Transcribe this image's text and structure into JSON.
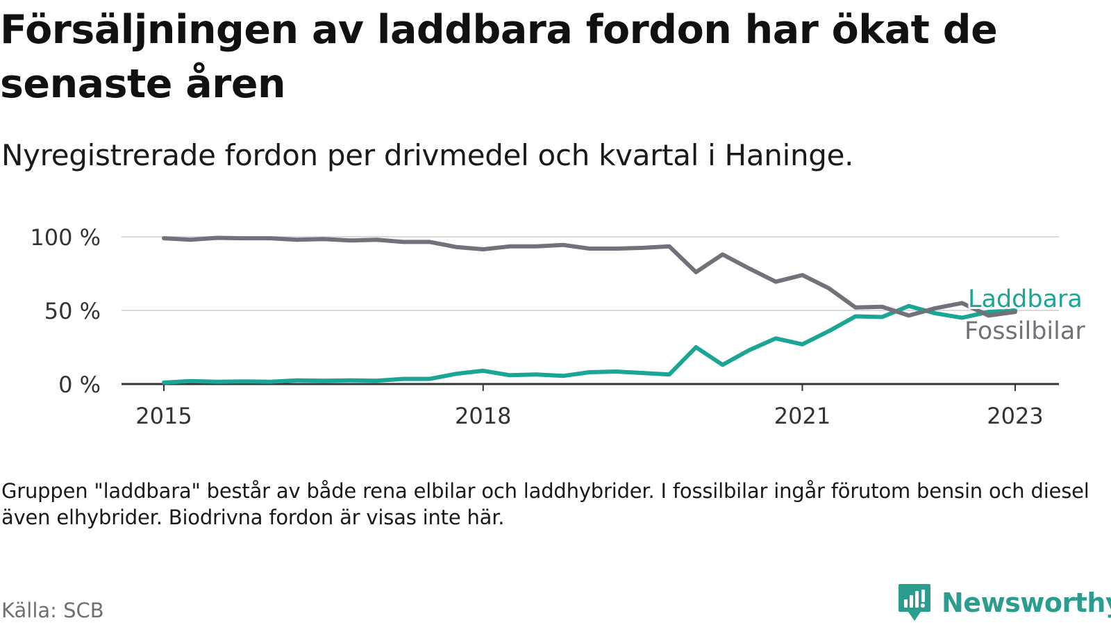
{
  "title": "Försäljningen av laddbara fordon har ökat de senaste åren",
  "subtitle": "Nyregistrerade fordon per drivmedel och kvartal i Haninge.",
  "note": "Gruppen \"laddbara\" består av både rena elbilar och laddhybrider. I fossilbilar ingår förutom bensin och diesel även elhybrider. Biodrivna fordon är visas inte här.",
  "source": "Källa: SCB",
  "brand": "Newsworthy",
  "chart_data": {
    "type": "line",
    "title": "Försäljningen av laddbara fordon har ökat de senaste åren",
    "xlabel": "",
    "ylabel": "",
    "ylim": [
      0,
      100
    ],
    "yticks": [
      0,
      50,
      100
    ],
    "ytick_labels": [
      "0 %",
      "50 %",
      "100 %"
    ],
    "xticks": [
      2015,
      2018,
      2021,
      2023
    ],
    "xtick_labels": [
      "2015",
      "2018",
      "2021",
      "2023"
    ],
    "xlim": [
      2014.6,
      2023.4
    ],
    "grid": true,
    "series": [
      {
        "name": "Laddbara",
        "color": "#1aa595",
        "x": [
          2015.0,
          2015.25,
          2015.5,
          2015.75,
          2016.0,
          2016.25,
          2016.5,
          2016.75,
          2017.0,
          2017.25,
          2017.5,
          2017.75,
          2018.0,
          2018.25,
          2018.5,
          2018.75,
          2019.0,
          2019.25,
          2019.5,
          2019.75,
          2020.0,
          2020.25,
          2020.5,
          2020.75,
          2021.0,
          2021.25,
          2021.5,
          2021.75,
          2022.0,
          2022.25,
          2022.5,
          2022.75,
          2023.0
        ],
        "values": [
          1,
          2,
          1.5,
          1.8,
          1.5,
          2.5,
          2.2,
          2.5,
          2.2,
          3.5,
          3.5,
          7,
          9,
          6,
          6.5,
          5.5,
          8,
          8.5,
          7.5,
          6.5,
          25,
          13,
          23,
          31,
          27,
          36,
          46,
          45.5,
          53,
          48,
          45,
          49,
          50
        ]
      },
      {
        "name": "Fossilbilar",
        "color": "#727079",
        "x": [
          2015.0,
          2015.25,
          2015.5,
          2015.75,
          2016.0,
          2016.25,
          2016.5,
          2016.75,
          2017.0,
          2017.25,
          2017.5,
          2017.75,
          2018.0,
          2018.25,
          2018.5,
          2018.75,
          2019.0,
          2019.25,
          2019.5,
          2019.75,
          2020.0,
          2020.25,
          2020.5,
          2020.75,
          2021.0,
          2021.25,
          2021.5,
          2021.75,
          2022.0,
          2022.25,
          2022.5,
          2022.75,
          2023.0
        ],
        "values": [
          99,
          98,
          99.3,
          99,
          99,
          98,
          98.5,
          97.5,
          98,
          96.5,
          96.5,
          93,
          91.5,
          93.5,
          93.5,
          94.5,
          92,
          92,
          92.5,
          93.5,
          76,
          88,
          78.5,
          69.5,
          74,
          65,
          52,
          52.5,
          46.5,
          51.5,
          55,
          46.5,
          49
        ]
      }
    ]
  }
}
